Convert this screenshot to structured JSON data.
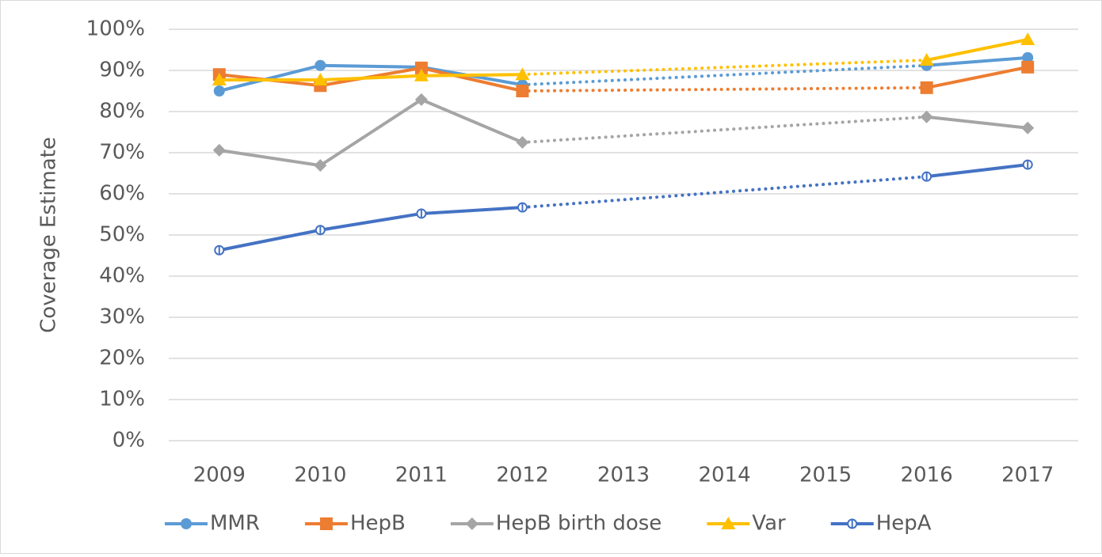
{
  "chart_data": {
    "type": "line",
    "y_label": "Coverage Estimate",
    "categories": [
      "2009",
      "2010",
      "2011",
      "2012",
      "2013",
      "2014",
      "2015",
      "2016",
      "2017"
    ],
    "series": [
      {
        "name": "MMR",
        "color": "#5b9bd5",
        "marker": "circle",
        "values": [
          85.0,
          91.2,
          90.8,
          86.5,
          null,
          null,
          null,
          91.2,
          93.1
        ]
      },
      {
        "name": "HepB",
        "color": "#ed7d31",
        "marker": "square",
        "values": [
          89.0,
          86.3,
          90.6,
          85.0,
          null,
          null,
          null,
          85.8,
          90.8
        ]
      },
      {
        "name": "HepB birth dose",
        "color": "#a5a5a5",
        "marker": "diamond",
        "values": [
          70.6,
          66.9,
          82.9,
          72.5,
          null,
          null,
          null,
          78.7,
          76.0
        ]
      },
      {
        "name": "Var",
        "color": "#ffc000",
        "marker": "triangle",
        "values": [
          87.7,
          87.7,
          88.7,
          89.0,
          null,
          null,
          null,
          92.5,
          97.5
        ]
      },
      {
        "name": "HepA",
        "color": "#4472c4",
        "marker": "half-circle",
        "values": [
          46.3,
          51.2,
          55.2,
          56.7,
          null,
          null,
          null,
          64.2,
          67.1
        ]
      }
    ],
    "ylim": [
      0,
      100
    ],
    "yticks": [
      {
        "value": 0,
        "label": "0%"
      },
      {
        "value": 10,
        "label": "10%"
      },
      {
        "value": 20,
        "label": "20%"
      },
      {
        "value": 30,
        "label": "30%"
      },
      {
        "value": 40,
        "label": "40%"
      },
      {
        "value": 50,
        "label": "50%"
      },
      {
        "value": 60,
        "label": "60%"
      },
      {
        "value": 70,
        "label": "70%"
      },
      {
        "value": 80,
        "label": "80%"
      },
      {
        "value": 90,
        "label": "90%"
      },
      {
        "value": 100,
        "label": "100%"
      }
    ],
    "grid": true,
    "legend": "bottom"
  }
}
